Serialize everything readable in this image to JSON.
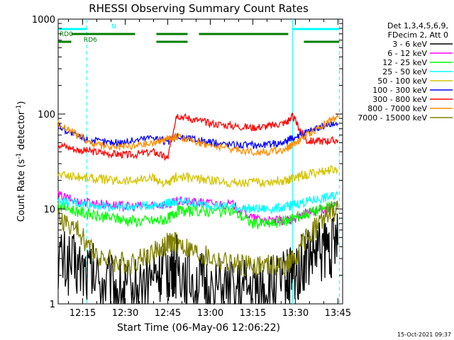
{
  "chart_data": {
    "type": "line",
    "title": "RHESSI Observing Summary Count Rates",
    "xlabel": "Start Time (06-May-06 12:06:22)",
    "ylabel_main": "Count Rate (s",
    "ylabel_sup1": "-1",
    "ylabel_mid": " detector",
    "ylabel_sup2": "-1",
    "ylabel_end": ")",
    "y_scale": "log",
    "ylim": [
      1,
      1000
    ],
    "xlim": [
      "12:06:22",
      "13:46:40"
    ],
    "x_tick_labels": [
      "12:15",
      "12:30",
      "12:45",
      "13:00",
      "13:15",
      "13:30",
      "13:45"
    ],
    "x_tick_minutes": [
      735,
      750,
      765,
      780,
      795,
      810,
      825
    ],
    "y_tick_labels": [
      "1",
      "10",
      "100",
      "1000"
    ],
    "y_tick_values": [
      1,
      10,
      100,
      1000
    ],
    "legend_header": [
      "Det 1,3,4,5,6,9,",
      "FDecim 2, Att 0"
    ],
    "legend_position": "right, outside plot",
    "series": [
      {
        "name": "3 - 6 keV",
        "color": "#000000",
        "x_minutes": [
          726.4,
          733,
          739,
          746,
          752,
          760,
          765,
          768,
          774,
          780,
          788,
          795,
          801,
          807,
          809,
          814,
          820,
          825
        ],
        "values": [
          3.0,
          2.5,
          2.0,
          1.5,
          1.3,
          2.0,
          2.3,
          2.5,
          1.8,
          1.4,
          1.3,
          1.4,
          1.5,
          1.8,
          2.0,
          3.0,
          3.8,
          4.2
        ]
      },
      {
        "name": "6 - 12 keV",
        "color": "#ff00ff",
        "x_minutes": [
          726.4,
          733,
          739,
          746,
          752,
          760,
          765,
          768,
          774,
          780,
          788,
          795,
          801,
          807,
          809,
          814,
          820,
          825
        ],
        "values": [
          14,
          12,
          11.5,
          11,
          10.5,
          11,
          11.2,
          12,
          11.8,
          11.5,
          11,
          8,
          7.5,
          7.5,
          7.8,
          9,
          10,
          11
        ]
      },
      {
        "name": "12 - 25 keV",
        "color": "#00ff00",
        "x_minutes": [
          726.4,
          733,
          739,
          746,
          752,
          760,
          765,
          768,
          774,
          780,
          788,
          795,
          801,
          807,
          809,
          814,
          820,
          825
        ],
        "values": [
          11,
          9.5,
          8.5,
          8,
          7.5,
          7.5,
          7.8,
          9.5,
          9.5,
          9.5,
          9.5,
          7,
          7,
          7.5,
          8,
          9,
          10,
          11
        ]
      },
      {
        "name": "25 - 50 keV",
        "color": "#00ffff",
        "x_minutes": [
          726.4,
          733,
          739,
          746,
          752,
          760,
          765,
          768,
          774,
          780,
          788,
          795,
          801,
          807,
          809,
          814,
          820,
          825
        ],
        "values": [
          12,
          11.5,
          11,
          10.5,
          10.5,
          11,
          11.5,
          12,
          11.5,
          11,
          10.5,
          10,
          10,
          10.5,
          11,
          12,
          13,
          14
        ]
      },
      {
        "name": "50 - 100 keV",
        "color": "#d4c400",
        "x_minutes": [
          726.4,
          733,
          739,
          746,
          752,
          760,
          765,
          768,
          774,
          780,
          788,
          795,
          801,
          807,
          809,
          814,
          820,
          825
        ],
        "values": [
          23,
          22,
          21,
          20,
          20,
          21,
          18,
          22,
          21,
          20,
          19,
          19,
          19.5,
          20,
          21,
          23,
          25,
          26
        ]
      },
      {
        "name": "100 - 300 keV",
        "color": "#0000ff",
        "x_minutes": [
          726.4,
          733,
          739,
          746,
          752,
          760,
          765,
          768,
          774,
          780,
          788,
          795,
          801,
          807,
          809,
          814,
          820,
          825
        ],
        "values": [
          75,
          58,
          52,
          50,
          52,
          58,
          50,
          58,
          55,
          50,
          48,
          47,
          48,
          52,
          56,
          65,
          75,
          80
        ]
      },
      {
        "name": "300 - 800 keV",
        "color": "#ff0000",
        "x_minutes": [
          726.4,
          733,
          739,
          746,
          752,
          760,
          765,
          768,
          774,
          780,
          788,
          795,
          801,
          807,
          809,
          814,
          820,
          825
        ],
        "values": [
          48,
          42,
          40,
          38,
          37,
          40,
          34,
          98,
          88,
          80,
          75,
          72,
          75,
          82,
          95,
          52,
          52,
          53
        ]
      },
      {
        "name": "800 - 7000 keV",
        "color": "#ff8c00",
        "x_minutes": [
          726.4,
          733,
          739,
          746,
          752,
          760,
          765,
          768,
          774,
          780,
          788,
          795,
          801,
          807,
          809,
          814,
          820,
          825
        ],
        "values": [
          80,
          60,
          48,
          44,
          46,
          50,
          56,
          58,
          52,
          47,
          43,
          40,
          40,
          43,
          48,
          60,
          78,
          92
        ]
      },
      {
        "name": "7000 - 15000 keV",
        "color": "#808000",
        "x_minutes": [
          726.4,
          733,
          739,
          746,
          752,
          760,
          765,
          768,
          774,
          780,
          788,
          795,
          801,
          807,
          809,
          814,
          820,
          825
        ],
        "values": [
          8,
          6,
          3.5,
          2.8,
          2.7,
          3.5,
          4.3,
          4.5,
          3.5,
          3.0,
          2.6,
          2.5,
          2.5,
          2.6,
          2.8,
          5.0,
          8,
          10
        ]
      }
    ],
    "flag_lines": [
      {
        "label": "N",
        "color": "#00ffff",
        "segments": [
          [
            726.4,
            736.5
          ],
          [
            809,
            825.5
          ]
        ]
      },
      {
        "label": "RD0",
        "color": "#007f00",
        "segments": [
          [
            731,
            753.5
          ],
          [
            761,
            772
          ],
          [
            776,
            807.5
          ]
        ]
      },
      {
        "label": "RD6",
        "color": "#007f00",
        "segments": [
          [
            726.4,
            731
          ],
          [
            761,
            772
          ],
          [
            813,
            825.5
          ]
        ]
      }
    ],
    "vertical_lines": {
      "color": "#00ffff",
      "solid_minutes": [
        809
      ],
      "dashed_minutes": [
        736.5,
        825.5
      ]
    },
    "timestamp": "15-Oct-2021 09:37"
  }
}
